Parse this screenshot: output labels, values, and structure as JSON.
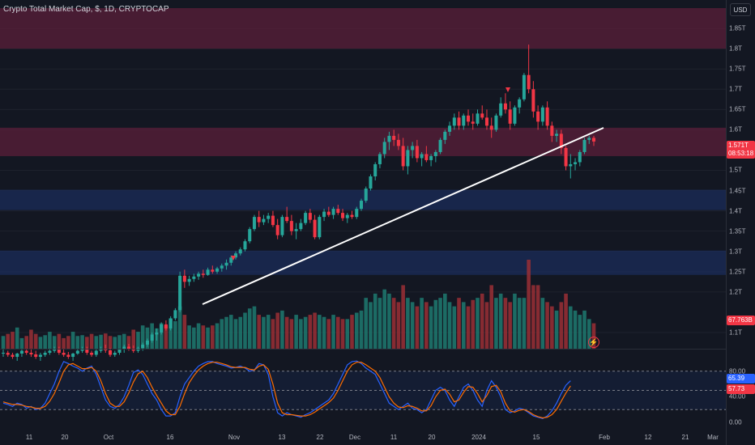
{
  "chart_title": "Crypto Total Market Cap, $, 1D, CRYPTOCAP",
  "currency": "USD",
  "colors": {
    "up": "#26a69a",
    "down": "#f23645",
    "upVol": "#1f7a70",
    "downVol": "#9b2f35",
    "supply_zone": "#5b1f3a",
    "demand_zone": "#1b2c5a",
    "trendline": "#ffffff",
    "stoch_k": "#2962ff",
    "stoch_d": "#ff6d00"
  },
  "price_axis": {
    "ticks": [
      "1.85T",
      "1.8T",
      "1.75T",
      "1.7T",
      "1.65T",
      "1.6T",
      "1.5T",
      "1.45T",
      "1.4T",
      "1.35T",
      "1.3T",
      "1.25T",
      "1.2T",
      "1.1T"
    ],
    "tick_values": [
      1.85,
      1.8,
      1.75,
      1.7,
      1.65,
      1.6,
      1.5,
      1.45,
      1.4,
      1.35,
      1.3,
      1.25,
      1.2,
      1.1
    ],
    "last_price": "1.571T",
    "countdown": "08:53:18",
    "last_value": 1.571,
    "volume_label": "67.763B"
  },
  "oscillator_axis": {
    "ticks": [
      "80.00",
      "40.00",
      "0.00"
    ],
    "tick_values": [
      80,
      40,
      0
    ],
    "k_value": "65.39",
    "d_value": "57.73",
    "k_num": 65.39,
    "d_num": 57.73
  },
  "time_axis": {
    "ticks": [
      "11",
      "20",
      "Oct",
      "16",
      "Nov",
      "13",
      "22",
      "Dec",
      "11",
      "20",
      "2024",
      "15",
      "Feb",
      "12",
      "21",
      "Mar"
    ]
  },
  "zones": [
    {
      "type": "supply",
      "top": 1.9,
      "bottom": 1.8
    },
    {
      "type": "supply",
      "top": 1.605,
      "bottom": 1.535
    },
    {
      "type": "demand",
      "top": 1.452,
      "bottom": 1.402
    },
    {
      "type": "demand",
      "top": 1.302,
      "bottom": 1.242
    }
  ],
  "chart_data": {
    "type": "candlestick",
    "title": "Crypto Total Market Cap, $, 1D, CRYPTOCAP",
    "ylim": [
      1.06,
      1.92
    ],
    "oscillator_lines": [
      80,
      50,
      20
    ],
    "candles": [
      [
        1.05,
        1.06,
        1.04,
        1.05
      ],
      [
        1.05,
        1.055,
        1.04,
        1.045
      ],
      [
        1.045,
        1.05,
        1.035,
        1.04
      ],
      [
        1.04,
        1.05,
        1.03,
        1.048
      ],
      [
        1.048,
        1.06,
        1.04,
        1.055
      ],
      [
        1.055,
        1.06,
        1.045,
        1.05
      ],
      [
        1.05,
        1.058,
        1.04,
        1.046
      ],
      [
        1.046,
        1.055,
        1.035,
        1.04
      ],
      [
        1.04,
        1.05,
        1.03,
        1.045
      ],
      [
        1.045,
        1.055,
        1.04,
        1.05
      ],
      [
        1.05,
        1.06,
        1.045,
        1.055
      ],
      [
        1.055,
        1.065,
        1.05,
        1.06
      ],
      [
        1.06,
        1.065,
        1.045,
        1.05
      ],
      [
        1.05,
        1.058,
        1.04,
        1.045
      ],
      [
        1.045,
        1.052,
        1.035,
        1.04
      ],
      [
        1.04,
        1.05,
        1.03,
        1.048
      ],
      [
        1.048,
        1.06,
        1.045,
        1.055
      ],
      [
        1.055,
        1.065,
        1.05,
        1.058
      ],
      [
        1.058,
        1.065,
        1.045,
        1.05
      ],
      [
        1.05,
        1.055,
        1.04,
        1.045
      ],
      [
        1.045,
        1.06,
        1.04,
        1.055
      ],
      [
        1.055,
        1.065,
        1.05,
        1.06
      ],
      [
        1.06,
        1.07,
        1.05,
        1.056
      ],
      [
        1.056,
        1.062,
        1.04,
        1.045
      ],
      [
        1.045,
        1.055,
        1.04,
        1.05
      ],
      [
        1.05,
        1.06,
        1.045,
        1.058
      ],
      [
        1.058,
        1.07,
        1.05,
        1.065
      ],
      [
        1.065,
        1.072,
        1.055,
        1.06
      ],
      [
        1.06,
        1.068,
        1.05,
        1.055
      ],
      [
        1.055,
        1.065,
        1.05,
        1.062
      ],
      [
        1.062,
        1.075,
        1.055,
        1.07
      ],
      [
        1.07,
        1.085,
        1.065,
        1.08
      ],
      [
        1.08,
        1.1,
        1.075,
        1.095
      ],
      [
        1.095,
        1.11,
        1.08,
        1.1
      ],
      [
        1.1,
        1.125,
        1.095,
        1.12
      ],
      [
        1.12,
        1.13,
        1.105,
        1.11
      ],
      [
        1.11,
        1.14,
        1.105,
        1.135
      ],
      [
        1.135,
        1.16,
        1.13,
        1.155
      ],
      [
        1.155,
        1.25,
        1.15,
        1.24
      ],
      [
        1.24,
        1.255,
        1.21,
        1.225
      ],
      [
        1.225,
        1.24,
        1.215,
        1.232
      ],
      [
        1.232,
        1.245,
        1.225,
        1.238
      ],
      [
        1.238,
        1.25,
        1.23,
        1.245
      ],
      [
        1.245,
        1.255,
        1.235,
        1.242
      ],
      [
        1.242,
        1.26,
        1.24,
        1.255
      ],
      [
        1.255,
        1.265,
        1.245,
        1.25
      ],
      [
        1.25,
        1.262,
        1.245,
        1.258
      ],
      [
        1.258,
        1.27,
        1.25,
        1.265
      ],
      [
        1.265,
        1.28,
        1.255,
        1.272
      ],
      [
        1.272,
        1.29,
        1.265,
        1.285
      ],
      [
        1.285,
        1.3,
        1.28,
        1.295
      ],
      [
        1.295,
        1.31,
        1.29,
        1.305
      ],
      [
        1.305,
        1.33,
        1.3,
        1.325
      ],
      [
        1.325,
        1.36,
        1.32,
        1.355
      ],
      [
        1.355,
        1.39,
        1.35,
        1.385
      ],
      [
        1.385,
        1.4,
        1.36,
        1.372
      ],
      [
        1.372,
        1.39,
        1.365,
        1.38
      ],
      [
        1.38,
        1.395,
        1.37,
        1.388
      ],
      [
        1.388,
        1.4,
        1.36,
        1.365
      ],
      [
        1.365,
        1.38,
        1.33,
        1.34
      ],
      [
        1.34,
        1.39,
        1.335,
        1.385
      ],
      [
        1.385,
        1.41,
        1.37,
        1.375
      ],
      [
        1.375,
        1.39,
        1.34,
        1.35
      ],
      [
        1.35,
        1.37,
        1.33,
        1.355
      ],
      [
        1.355,
        1.38,
        1.35,
        1.37
      ],
      [
        1.37,
        1.4,
        1.365,
        1.395
      ],
      [
        1.395,
        1.405,
        1.37,
        1.378
      ],
      [
        1.378,
        1.39,
        1.33,
        1.335
      ],
      [
        1.335,
        1.39,
        1.33,
        1.385
      ],
      [
        1.385,
        1.405,
        1.375,
        1.398
      ],
      [
        1.398,
        1.41,
        1.385,
        1.39
      ],
      [
        1.39,
        1.41,
        1.38,
        1.405
      ],
      [
        1.405,
        1.415,
        1.39,
        1.395
      ],
      [
        1.395,
        1.405,
        1.375,
        1.382
      ],
      [
        1.382,
        1.395,
        1.37,
        1.39
      ],
      [
        1.39,
        1.4,
        1.38,
        1.385
      ],
      [
        1.385,
        1.41,
        1.38,
        1.405
      ],
      [
        1.405,
        1.43,
        1.4,
        1.425
      ],
      [
        1.425,
        1.46,
        1.42,
        1.455
      ],
      [
        1.455,
        1.49,
        1.45,
        1.485
      ],
      [
        1.485,
        1.52,
        1.475,
        1.515
      ],
      [
        1.515,
        1.545,
        1.505,
        1.54
      ],
      [
        1.54,
        1.58,
        1.53,
        1.57
      ],
      [
        1.57,
        1.595,
        1.55,
        1.585
      ],
      [
        1.585,
        1.6,
        1.56,
        1.575
      ],
      [
        1.575,
        1.59,
        1.55,
        1.56
      ],
      [
        1.56,
        1.58,
        1.5,
        1.51
      ],
      [
        1.51,
        1.56,
        1.49,
        1.55
      ],
      [
        1.55,
        1.57,
        1.53,
        1.56
      ],
      [
        1.56,
        1.575,
        1.52,
        1.53
      ],
      [
        1.53,
        1.545,
        1.51,
        1.54
      ],
      [
        1.54,
        1.56,
        1.52,
        1.525
      ],
      [
        1.525,
        1.54,
        1.51,
        1.535
      ],
      [
        1.535,
        1.55,
        1.52,
        1.545
      ],
      [
        1.545,
        1.58,
        1.54,
        1.575
      ],
      [
        1.575,
        1.6,
        1.565,
        1.595
      ],
      [
        1.595,
        1.62,
        1.585,
        1.61
      ],
      [
        1.61,
        1.64,
        1.6,
        1.63
      ],
      [
        1.63,
        1.645,
        1.6,
        1.61
      ],
      [
        1.61,
        1.64,
        1.6,
        1.635
      ],
      [
        1.635,
        1.65,
        1.61,
        1.62
      ],
      [
        1.62,
        1.64,
        1.6,
        1.615
      ],
      [
        1.615,
        1.65,
        1.61,
        1.64
      ],
      [
        1.64,
        1.66,
        1.625,
        1.63
      ],
      [
        1.63,
        1.65,
        1.6,
        1.61
      ],
      [
        1.61,
        1.63,
        1.58,
        1.6
      ],
      [
        1.6,
        1.64,
        1.595,
        1.635
      ],
      [
        1.635,
        1.68,
        1.63,
        1.665
      ],
      [
        1.665,
        1.69,
        1.64,
        1.65
      ],
      [
        1.65,
        1.67,
        1.6,
        1.615
      ],
      [
        1.615,
        1.66,
        1.61,
        1.655
      ],
      [
        1.655,
        1.68,
        1.64,
        1.675
      ],
      [
        1.675,
        1.74,
        1.67,
        1.735
      ],
      [
        1.735,
        1.81,
        1.69,
        1.7
      ],
      [
        1.7,
        1.72,
        1.63,
        1.645
      ],
      [
        1.645,
        1.66,
        1.6,
        1.62
      ],
      [
        1.62,
        1.66,
        1.61,
        1.655
      ],
      [
        1.655,
        1.67,
        1.6,
        1.61
      ],
      [
        1.61,
        1.62,
        1.57,
        1.585
      ],
      [
        1.585,
        1.6,
        1.57,
        1.59
      ],
      [
        1.59,
        1.6,
        1.54,
        1.555
      ],
      [
        1.555,
        1.56,
        1.5,
        1.51
      ],
      [
        1.51,
        1.54,
        1.48,
        1.515
      ],
      [
        1.515,
        1.53,
        1.5,
        1.52
      ],
      [
        1.52,
        1.55,
        1.51,
        1.545
      ],
      [
        1.545,
        1.58,
        1.54,
        1.575
      ],
      [
        1.575,
        1.585,
        1.565,
        1.58
      ],
      [
        1.58,
        1.585,
        1.56,
        1.571
      ]
    ],
    "volumes": [
      0.3,
      0.35,
      0.4,
      0.5,
      0.25,
      0.3,
      0.45,
      0.35,
      0.28,
      0.32,
      0.4,
      0.3,
      0.35,
      0.25,
      0.3,
      0.4,
      0.3,
      0.32,
      0.28,
      0.35,
      0.3,
      0.33,
      0.36,
      0.3,
      0.28,
      0.32,
      0.35,
      0.3,
      0.45,
      0.4,
      0.55,
      0.5,
      0.6,
      0.48,
      0.6,
      0.55,
      0.7,
      0.65,
      1.0,
      0.8,
      0.55,
      0.5,
      0.6,
      0.55,
      0.5,
      0.55,
      0.6,
      0.7,
      0.75,
      0.8,
      0.7,
      0.75,
      0.85,
      0.95,
      1.0,
      0.8,
      0.75,
      0.8,
      0.7,
      0.85,
      0.9,
      0.75,
      0.7,
      0.8,
      0.7,
      0.75,
      0.8,
      0.85,
      0.8,
      0.75,
      0.7,
      0.8,
      0.75,
      0.7,
      0.7,
      0.8,
      0.85,
      0.9,
      1.2,
      1.1,
      1.3,
      1.2,
      1.4,
      1.3,
      1.2,
      1.1,
      1.5,
      1.2,
      1.1,
      1.0,
      1.2,
      1.1,
      1.0,
      1.15,
      1.2,
      1.3,
      1.1,
      1.0,
      1.2,
      1.1,
      1.0,
      1.15,
      1.2,
      1.3,
      1.1,
      1.5,
      1.2,
      1.3,
      1.2,
      1.1,
      1.3,
      1.2,
      1.2,
      2.1,
      1.5,
      1.5,
      1.2,
      1.1,
      1.0,
      0.9,
      1.1,
      1.3,
      1.0,
      0.9,
      0.8,
      0.9,
      0.7,
      0.6
    ],
    "stoch_k": [
      30,
      28,
      25,
      30,
      28,
      22,
      25,
      20,
      22,
      30,
      45,
      60,
      80,
      95,
      92,
      88,
      85,
      80,
      85,
      88,
      75,
      55,
      35,
      25,
      22,
      28,
      40,
      58,
      78,
      82,
      75,
      60,
      45,
      35,
      20,
      10,
      10,
      15,
      40,
      60,
      70,
      80,
      88,
      92,
      95,
      95,
      92,
      90,
      88,
      85,
      86,
      88,
      85,
      80,
      82,
      92,
      90,
      75,
      40,
      15,
      10,
      15,
      12,
      10,
      8,
      12,
      15,
      20,
      25,
      30,
      35,
      45,
      60,
      75,
      90,
      95,
      96,
      92,
      85,
      80,
      75,
      60,
      45,
      30,
      25,
      20,
      25,
      30,
      22,
      20,
      15,
      20,
      35,
      50,
      55,
      50,
      35,
      25,
      40,
      55,
      60,
      50,
      35,
      25,
      50,
      65,
      55,
      40,
      20,
      15,
      18,
      22,
      20,
      15,
      10,
      8,
      6,
      10,
      18,
      30,
      45,
      58,
      65
    ],
    "stoch_d": [
      32,
      30,
      28,
      28,
      27,
      25,
      24,
      22,
      22,
      25,
      33,
      45,
      62,
      80,
      90,
      92,
      88,
      84,
      84,
      86,
      80,
      65,
      45,
      30,
      25,
      25,
      32,
      46,
      63,
      76,
      80,
      70,
      55,
      42,
      30,
      18,
      12,
      12,
      25,
      45,
      62,
      73,
      82,
      88,
      92,
      94,
      94,
      92,
      90,
      87,
      86,
      86,
      86,
      83,
      82,
      88,
      90,
      83,
      60,
      30,
      15,
      12,
      12,
      11,
      10,
      10,
      12,
      16,
      21,
      26,
      31,
      38,
      50,
      65,
      80,
      90,
      94,
      94,
      90,
      85,
      80,
      70,
      55,
      40,
      30,
      24,
      23,
      26,
      25,
      22,
      18,
      18,
      26,
      40,
      50,
      52,
      44,
      32,
      35,
      47,
      56,
      55,
      45,
      32,
      42,
      56,
      58,
      48,
      30,
      18,
      16,
      19,
      20,
      17,
      12,
      9,
      7,
      8,
      12,
      20,
      33,
      46,
      57
    ]
  }
}
